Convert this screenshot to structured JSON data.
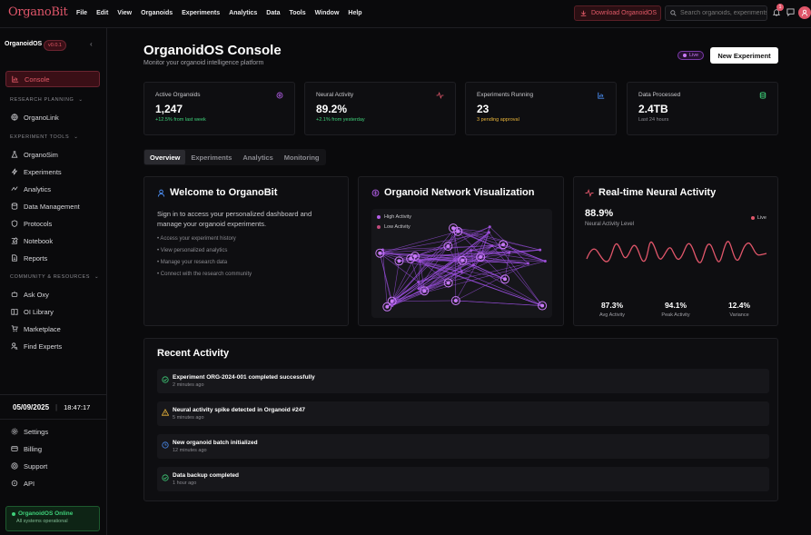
{
  "app": {
    "logo": "OrganoBit"
  },
  "menu": [
    "File",
    "Edit",
    "View",
    "Organoids",
    "Experiments",
    "Analytics",
    "Data",
    "Tools",
    "Window",
    "Help"
  ],
  "header": {
    "download_label": "Download OrganoidOS",
    "search_placeholder": "Search organoids, experiments...",
    "notification_count": "1"
  },
  "sidebar": {
    "title": "OrganoidOS",
    "version": "v0.0.1",
    "console_label": "Console",
    "sections": {
      "research_planning": "RESEARCH PLANNING",
      "experiment_tools": "EXPERIMENT TOOLS",
      "community": "COMMUNITY & RESOURCES"
    },
    "organolink": "OrganoLink",
    "tools": [
      "OrganoSim",
      "Experiments",
      "Analytics",
      "Data Management",
      "Protocols",
      "Notebook",
      "Reports"
    ],
    "community_items": [
      "Ask Oxy",
      "OI Library",
      "Marketplace",
      "Find Experts"
    ],
    "date": "05/09/2025",
    "time": "18:47:17",
    "bottom_items": [
      "Settings",
      "Billing",
      "Support",
      "API"
    ],
    "status_title": "OrganoidOS Online",
    "status_sub": "All systems operational"
  },
  "main": {
    "title": "OrganoidOS Console",
    "subtitle": "Monitor your organoid intelligence platform",
    "live": "Live",
    "new_experiment": "New Experiment"
  },
  "stats": [
    {
      "label": "Active Organoids",
      "value": "1,247",
      "sub": "+12.5% from last week",
      "sub_color": "#3fd07a",
      "icon": "brain-icon",
      "icon_color": "#b35ee8"
    },
    {
      "label": "Neural Activity",
      "value": "89.2%",
      "sub": "+2.1% from yesterday",
      "sub_color": "#3fd07a",
      "icon": "activity-icon",
      "icon_color": "#e0566a"
    },
    {
      "label": "Experiments Running",
      "value": "23",
      "sub": "3 pending approval",
      "sub_color": "#e8b43a",
      "icon": "chart-icon",
      "icon_color": "#4a8cf0"
    },
    {
      "label": "Data Processed",
      "value": "2.4TB",
      "sub": "Last 24 hours",
      "sub_color": "#8a8a90",
      "icon": "database-icon",
      "icon_color": "#3fd07a"
    }
  ],
  "tabs": [
    "Overview",
    "Experiments",
    "Analytics",
    "Monitoring"
  ],
  "welcome": {
    "title": "Welcome to OrganoBit",
    "text": "Sign in to access your personalized dashboard and manage your organoid experiments.",
    "bullets": [
      "• Access your experiment history",
      "• View personalized analytics",
      "• Manage your research data",
      "• Connect with the research community"
    ]
  },
  "network": {
    "title": "Organoid Network Visualization",
    "legend_high": "High Activity",
    "legend_low": "Low Activity"
  },
  "realtime": {
    "title": "Real-time Neural Activity",
    "value": "88.9%",
    "label": "Neural Activity Level",
    "live": "Live",
    "stats": [
      {
        "value": "87.3%",
        "label": "Avg Activity"
      },
      {
        "value": "94.1%",
        "label": "Peak Activity"
      },
      {
        "value": "12.4%",
        "label": "Variance"
      }
    ]
  },
  "recent": {
    "title": "Recent Activity",
    "items": [
      {
        "title": "Experiment ORG-2024-001 completed successfully",
        "time": "2 minutes ago",
        "icon": "check-circle-icon",
        "color": "#3fd07a"
      },
      {
        "title": "Neural activity spike detected in Organoid #247",
        "time": "5 minutes ago",
        "icon": "warning-icon",
        "color": "#e8b43a"
      },
      {
        "title": "New organoid batch initialized",
        "time": "12 minutes ago",
        "icon": "clock-icon",
        "color": "#4a8cf0"
      },
      {
        "title": "Data backup completed",
        "time": "1 hour ago",
        "icon": "check-circle-icon",
        "color": "#3fd07a"
      }
    ]
  }
}
